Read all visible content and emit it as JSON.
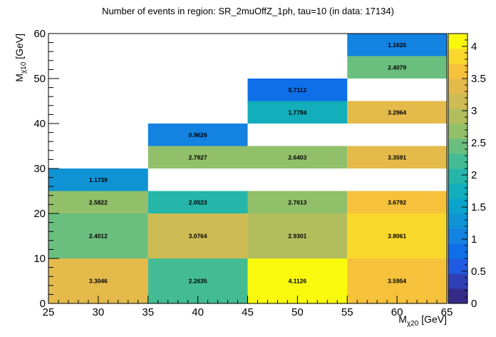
{
  "chart_data": {
    "type": "heatmap",
    "title": "Number of events in region: SR_2muOffZ_1ph, tau=10 (in data: 17134)",
    "xlabel": {
      "main": "M",
      "sub": "χ20",
      "unit": " [GeV]"
    },
    "ylabel": {
      "main": "M",
      "sub": "χ10",
      "unit": " [GeV]"
    },
    "xlim": [
      25,
      65
    ],
    "ylim": [
      0,
      60
    ],
    "x_ticks": [
      25,
      30,
      35,
      40,
      45,
      50,
      55,
      60,
      65
    ],
    "y_ticks": [
      0,
      10,
      20,
      30,
      40,
      50,
      60
    ],
    "zlim": [
      0,
      4.2
    ],
    "z_ticks": [
      0,
      0.5,
      1,
      1.5,
      2,
      2.5,
      3,
      3.5,
      4
    ],
    "cells": [
      {
        "x0": 25,
        "x1": 35,
        "y0": 0,
        "y1": 10,
        "value": 3.3046,
        "label": "3.3046"
      },
      {
        "x0": 25,
        "x1": 35,
        "y0": 10,
        "y1": 20,
        "value": 2.4012,
        "label": "2.4012"
      },
      {
        "x0": 25,
        "x1": 35,
        "y0": 20,
        "y1": 25,
        "value": 2.5822,
        "label": "2.5822"
      },
      {
        "x0": 25,
        "x1": 35,
        "y0": 25,
        "y1": 30,
        "value": 1.1739,
        "label": "1.1739"
      },
      {
        "x0": 35,
        "x1": 45,
        "y0": 0,
        "y1": 10,
        "value": 2.2635,
        "label": "2.2635"
      },
      {
        "x0": 35,
        "x1": 45,
        "y0": 10,
        "y1": 20,
        "value": 3.0764,
        "label": "3.0764"
      },
      {
        "x0": 35,
        "x1": 45,
        "y0": 20,
        "y1": 25,
        "value": 2.0523,
        "label": "2.0523"
      },
      {
        "x0": 35,
        "x1": 45,
        "y0": 30,
        "y1": 35,
        "value": 2.7927,
        "label": "2.7927"
      },
      {
        "x0": 35,
        "x1": 45,
        "y0": 35,
        "y1": 40,
        "value": 0.9626,
        "label": "0.9626"
      },
      {
        "x0": 45,
        "x1": 55,
        "y0": 0,
        "y1": 10,
        "value": 4.1126,
        "label": "4.1126"
      },
      {
        "x0": 45,
        "x1": 55,
        "y0": 10,
        "y1": 20,
        "value": 2.9301,
        "label": "2.9301"
      },
      {
        "x0": 45,
        "x1": 55,
        "y0": 20,
        "y1": 25,
        "value": 2.7613,
        "label": "2.7613"
      },
      {
        "x0": 45,
        "x1": 55,
        "y0": 30,
        "y1": 35,
        "value": 2.6403,
        "label": "2.6403"
      },
      {
        "x0": 45,
        "x1": 55,
        "y0": 40,
        "y1": 45,
        "value": 1.7784,
        "label": "1.7784"
      },
      {
        "x0": 45,
        "x1": 55,
        "y0": 45,
        "y1": 50,
        "value": 0.7112,
        "label": "0.7112"
      },
      {
        "x0": 55,
        "x1": 65,
        "y0": 0,
        "y1": 10,
        "value": 3.5954,
        "label": "3.5954"
      },
      {
        "x0": 55,
        "x1": 65,
        "y0": 10,
        "y1": 20,
        "value": 3.8061,
        "label": "3.8061"
      },
      {
        "x0": 55,
        "x1": 65,
        "y0": 20,
        "y1": 25,
        "value": 3.6792,
        "label": "3.6792"
      },
      {
        "x0": 55,
        "x1": 65,
        "y0": 30,
        "y1": 35,
        "value": 3.3591,
        "label": "3.3591"
      },
      {
        "x0": 55,
        "x1": 65,
        "y0": 40,
        "y1": 45,
        "value": 3.2964,
        "label": "3.2964"
      },
      {
        "x0": 55,
        "x1": 65,
        "y0": 50,
        "y1": 55,
        "value": 2.4079,
        "label": "2.4079"
      },
      {
        "x0": 55,
        "x1": 65,
        "y0": 55,
        "y1": 60,
        "value": 1.1626,
        "label": "1.1626"
      }
    ],
    "palette": [
      "#352a87",
      "#2f3fb5",
      "#1f5be3",
      "#0f6fe8",
      "#1382e0",
      "#0f93d5",
      "#0aa3cc",
      "#12aebb",
      "#25b6a9",
      "#43bc94",
      "#6bbf7e",
      "#92bf6a",
      "#b2bd5d",
      "#cdbb54",
      "#e4ba4b",
      "#f6c13b",
      "#f9d82c",
      "#f9f90e"
    ],
    "grid": false,
    "colorbar": "right"
  }
}
